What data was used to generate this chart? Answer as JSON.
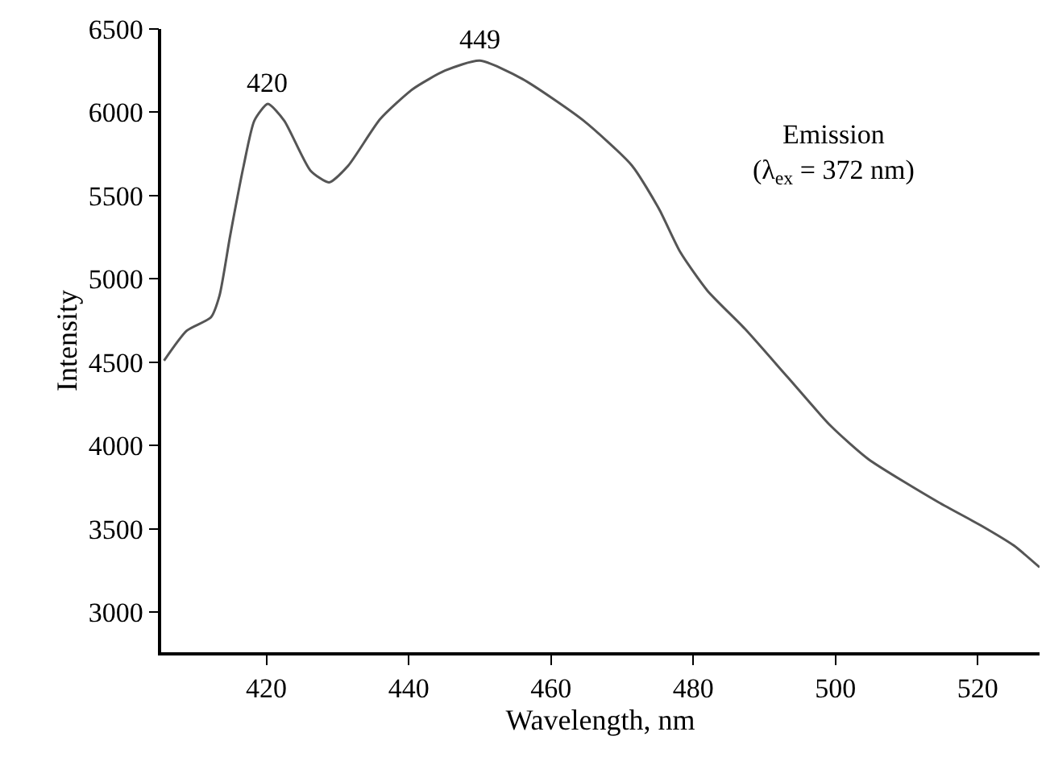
{
  "chart_data": {
    "type": "line",
    "xlabel": "Wavelength, nm",
    "ylabel": "Intensity",
    "x": [
      405.6,
      408.8,
      412.2,
      413.4,
      414.9,
      416.8,
      418.3,
      420.2,
      422.5,
      426.2,
      428.8,
      431.5,
      436.0,
      440.6,
      445.1,
      450.0,
      456.0,
      464.6,
      471.4,
      475.2,
      478.2,
      482.0,
      487.3,
      493.3,
      499.3,
      504.6,
      514.5,
      520.5,
      525.1,
      528.7
    ],
    "series": [
      {
        "color": "#555555",
        "values": [
          4510,
          4690,
          4770,
          4900,
          5260,
          5680,
          5950,
          6050,
          5950,
          5650,
          5580,
          5680,
          5960,
          6140,
          6250,
          6310,
          6200,
          5950,
          5680,
          5420,
          5160,
          4930,
          4700,
          4410,
          4120,
          3920,
          3660,
          3520,
          3400,
          3270
        ]
      }
    ],
    "xlim": [
      405.2,
      528.7
    ],
    "ylim": [
      2760,
      6500
    ],
    "xticks": [
      420,
      440,
      460,
      480,
      500,
      520
    ],
    "yticks": [
      3000,
      3500,
      4000,
      4500,
      5000,
      5500,
      6000,
      6500
    ],
    "annotations": [
      {
        "text": "420",
        "x": 420.2,
        "y": 6050
      },
      {
        "text": "449",
        "x": 450.0,
        "y": 6310
      },
      "Emission\n(λ$_{ex}$ = 372 nm)"
    ],
    "legend": false,
    "marker": "none",
    "line_style": "solid"
  }
}
